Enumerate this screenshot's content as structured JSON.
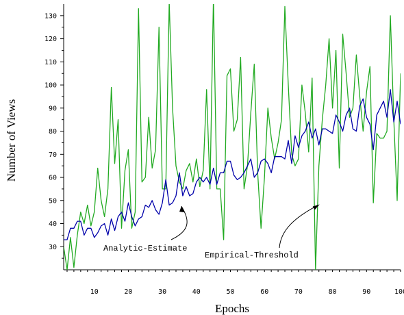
{
  "chart_data": {
    "type": "line",
    "xlabel": "Epochs",
    "ylabel": "Number of Views",
    "xlim": [
      1,
      100
    ],
    "ylim": [
      20,
      135
    ],
    "xticks": [
      10,
      20,
      30,
      40,
      50,
      60,
      70,
      80,
      90,
      100
    ],
    "yticks": [
      30,
      40,
      50,
      60,
      70,
      80,
      90,
      100,
      110,
      120,
      130
    ],
    "grid": false,
    "legend": "none",
    "x": [
      1,
      2,
      3,
      4,
      5,
      6,
      7,
      8,
      9,
      10,
      11,
      12,
      13,
      14,
      15,
      16,
      17,
      18,
      19,
      20,
      21,
      22,
      23,
      24,
      25,
      26,
      27,
      28,
      29,
      30,
      31,
      32,
      33,
      34,
      35,
      36,
      37,
      38,
      39,
      40,
      41,
      42,
      43,
      44,
      45,
      46,
      47,
      48,
      49,
      50,
      51,
      52,
      53,
      54,
      55,
      56,
      57,
      58,
      59,
      60,
      61,
      62,
      63,
      64,
      65,
      66,
      67,
      68,
      69,
      70,
      71,
      72,
      73,
      74,
      75,
      76,
      77,
      78,
      79,
      80,
      81,
      82,
      83,
      84,
      85,
      86,
      87,
      88,
      89,
      90,
      91,
      92,
      93,
      94,
      95,
      96,
      97,
      98,
      99,
      100
    ],
    "series": [
      {
        "name": "Analytic-Estimate",
        "color": "#0000aa",
        "values": [
          33,
          33,
          38,
          38,
          41,
          41,
          35,
          38,
          38,
          34,
          36,
          39,
          40,
          35,
          42,
          37,
          43,
          45,
          41,
          49,
          43,
          39,
          42,
          43,
          48,
          47,
          50,
          46,
          44,
          49,
          59,
          48,
          49,
          52,
          62,
          52,
          56,
          52,
          53,
          58,
          60,
          58,
          60,
          57,
          64,
          57,
          62,
          62,
          67,
          67,
          61,
          59,
          60,
          62,
          65,
          68,
          60,
          62,
          67,
          68,
          66,
          62,
          69,
          69,
          69,
          68,
          76,
          66,
          78,
          73,
          78,
          80,
          84,
          77,
          81,
          74,
          81,
          81,
          80,
          79,
          87,
          84,
          80,
          87,
          90,
          81,
          80,
          91,
          94,
          86,
          83,
          72,
          87,
          90,
          93,
          86,
          98,
          84,
          93,
          83
        ]
      },
      {
        "name": "Empirical-Threshold",
        "color": "#22aa22",
        "values": [
          30,
          20,
          34,
          21,
          35,
          45,
          40,
          48,
          39,
          45,
          64,
          50,
          43,
          55,
          99,
          66,
          85,
          38,
          63,
          72,
          38,
          45,
          133,
          58,
          60,
          86,
          64,
          72,
          125,
          55,
          55,
          136,
          90,
          65,
          58,
          55,
          63,
          66,
          58,
          68,
          56,
          63,
          98,
          55,
          138,
          55,
          55,
          33,
          104,
          107,
          80,
          85,
          112,
          55,
          65,
          88,
          109,
          62,
          38,
          60,
          90,
          77,
          68,
          75,
          85,
          134,
          100,
          70,
          65,
          68,
          100,
          88,
          71,
          103,
          20,
          65,
          85,
          100,
          120,
          90,
          115,
          64,
          122,
          105,
          86,
          90,
          113,
          95,
          80,
          97,
          108,
          49,
          79,
          77,
          77,
          80,
          130,
          85,
          50,
          105
        ]
      }
    ],
    "annotations": [
      {
        "text": "Analytic-Estimate",
        "target_x": 35,
        "target_y": 49
      },
      {
        "text": "Empirical-Threshold",
        "target_x": 76,
        "target_y": 48
      }
    ]
  }
}
